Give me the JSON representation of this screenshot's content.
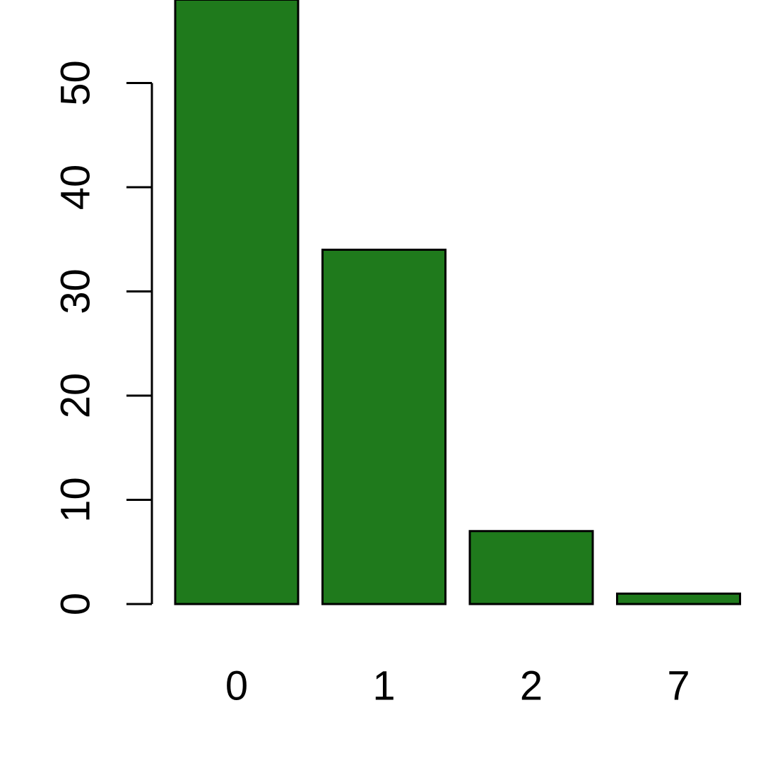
{
  "chart_data": {
    "type": "bar",
    "categories": [
      "0",
      "1",
      "2",
      "7"
    ],
    "values": [
      58,
      34,
      7,
      1
    ],
    "title": "",
    "xlabel": "",
    "ylabel": "",
    "ylim": [
      0,
      58
    ],
    "y_ticks": [
      0,
      10,
      20,
      30,
      40,
      50
    ],
    "y_tick_labels": [
      "0",
      "10",
      "20",
      "30",
      "40",
      "50"
    ],
    "grid": false,
    "legend": "none",
    "bar_color": "#1f7a1c",
    "bar_border_color": "#000000"
  }
}
